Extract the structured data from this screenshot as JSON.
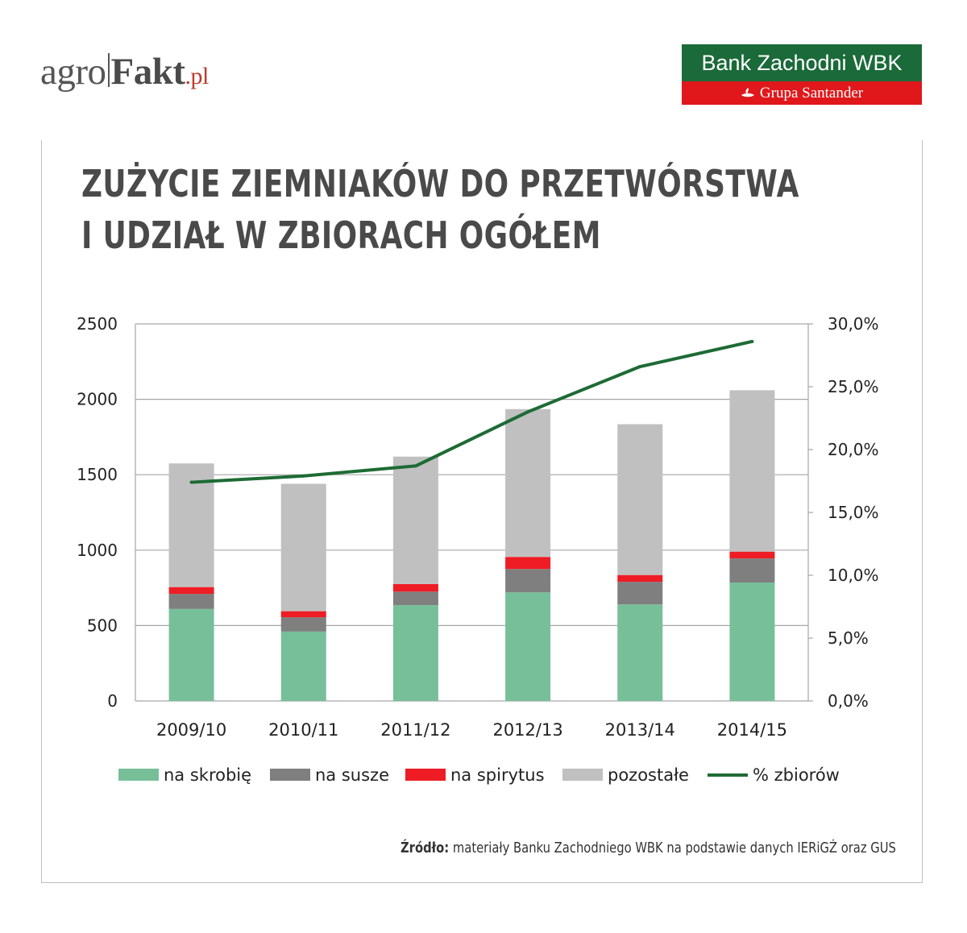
{
  "header": {
    "agro_logo": {
      "part1": "agro",
      "part2": "Fakt",
      "part3": ".pl"
    },
    "bank_logo": {
      "name": "Bank Zachodni WBK",
      "group": "Grupa Santander",
      "icon": "santander-flame-icon"
    }
  },
  "title": {
    "line1": "ZUŻYCIE ZIEMNIAKÓW DO PRZETWÓRSTWA",
    "line2": "I UDZIAŁ W ZBIORACH OGÓŁEM"
  },
  "source": {
    "label": "Źródło:",
    "text": " materiały Banku Zachodniego WBK na podstawie danych IERiGŻ oraz GUS"
  },
  "colors": {
    "skrobia": "#77bf99",
    "susze": "#7f7f7f",
    "spirytus": "#ee1c24",
    "pozostale": "#c0c0c0",
    "line": "#1e6b35",
    "grid": "#a6a6a6"
  },
  "chart_data": {
    "type": "bar",
    "stacked": true,
    "categories": [
      "2009/10",
      "2010/11",
      "2011/12",
      "2012/13",
      "2013/14",
      "2014/15"
    ],
    "series": [
      {
        "name": "na skrobię",
        "values": [
          610,
          460,
          635,
          720,
          640,
          785
        ]
      },
      {
        "name": "na susze",
        "values": [
          100,
          95,
          90,
          155,
          150,
          160
        ]
      },
      {
        "name": "na spirytus",
        "values": [
          45,
          40,
          50,
          80,
          45,
          45
        ]
      },
      {
        "name": "pozostałe",
        "values": [
          820,
          845,
          845,
          980,
          1000,
          1070
        ]
      }
    ],
    "line_series": {
      "name": "% zbiorów",
      "axis": "right",
      "values": [
        17.4,
        17.9,
        18.7,
        23.0,
        26.6,
        28.6
      ]
    },
    "y_left": {
      "min": 0,
      "max": 2500,
      "ticks": [
        "0",
        "500",
        "1000",
        "1500",
        "2000",
        "2500"
      ]
    },
    "y_right": {
      "min": 0,
      "max": 30,
      "ticks": [
        "0,0%",
        "5,0%",
        "10,0%",
        "15,0%",
        "20,0%",
        "25,0%",
        "30,0%"
      ]
    },
    "grid": true,
    "legend": {
      "placement": "bottom",
      "items": [
        "na skrobię",
        "na susze",
        "na spirytus",
        "pozostałe",
        "% zbiorów"
      ]
    }
  }
}
